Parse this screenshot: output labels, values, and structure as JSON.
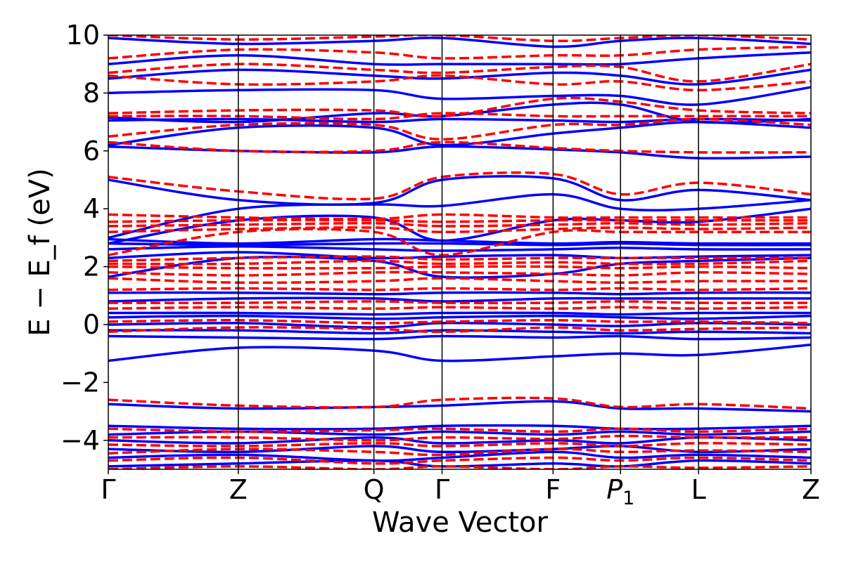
{
  "chart_data": {
    "type": "line",
    "xlabel": "Wave Vector",
    "ylabel": "E − E_f (eV)",
    "ylim": [
      -5,
      10
    ],
    "yticks": [
      -4,
      -2,
      0,
      2,
      4,
      6,
      8,
      10
    ],
    "ytick_labels": [
      "−4",
      "−2",
      "0",
      "2",
      "4",
      "6",
      "8",
      "10"
    ],
    "xlim": [
      0,
      1
    ],
    "kpoints": [
      {
        "label": "Γ",
        "x": 0.0
      },
      {
        "label": "Z",
        "x": 0.185
      },
      {
        "label": "Q",
        "x": 0.378
      },
      {
        "label": "Γ",
        "x": 0.475
      },
      {
        "label": "F",
        "x": 0.633
      },
      {
        "label": "P",
        "sub": "1",
        "x": 0.729
      },
      {
        "label": "L",
        "x": 0.84
      },
      {
        "label": "Z",
        "x": 1.0
      }
    ],
    "colors": {
      "series_a": "#0000ff",
      "series_b": "#ff0000"
    },
    "series": [
      {
        "color": "#0000ff",
        "dash": "solid",
        "bands": [
          [
            -4.9,
            -4.8,
            -4.7,
            -4.9,
            -4.8,
            -4.9,
            -4.7,
            -4.8
          ],
          [
            -4.6,
            -4.5,
            -4.7,
            -4.6,
            -4.4,
            -4.6,
            -4.5,
            -4.6
          ],
          [
            -4.3,
            -4.4,
            -4.2,
            -4.4,
            -4.3,
            -4.2,
            -4.4,
            -4.3
          ],
          [
            -4.0,
            -4.1,
            -3.9,
            -4.1,
            -4.0,
            -4.1,
            -3.9,
            -4.0
          ],
          [
            -3.8,
            -3.7,
            -3.8,
            -3.7,
            -3.8,
            -3.7,
            -3.8,
            -3.7
          ],
          [
            -3.5,
            -3.6,
            -3.6,
            -3.5,
            -3.5,
            -3.6,
            -3.6,
            -3.5
          ],
          [
            -2.75,
            -2.9,
            -2.85,
            -2.8,
            -2.65,
            -2.9,
            -2.9,
            -3.0
          ],
          [
            -1.25,
            -0.8,
            -0.9,
            -1.25,
            -1.1,
            -1.0,
            -1.05,
            -0.7
          ],
          [
            -0.4,
            -0.45,
            -0.5,
            -0.4,
            -0.45,
            -0.4,
            -0.5,
            -0.45
          ],
          [
            -0.2,
            -0.2,
            -0.3,
            -0.2,
            -0.25,
            -0.3,
            -0.25,
            -0.3
          ],
          [
            0.0,
            0.05,
            -0.1,
            0.05,
            0.0,
            -0.05,
            0.05,
            0.0
          ],
          [
            0.25,
            0.3,
            0.2,
            0.25,
            0.3,
            0.25,
            0.2,
            0.3
          ],
          [
            0.4,
            0.4,
            0.35,
            0.4,
            0.4,
            0.35,
            0.4,
            0.4
          ],
          [
            0.8,
            0.9,
            0.9,
            0.8,
            0.9,
            0.9,
            0.9,
            0.9
          ],
          [
            1.1,
            1.1,
            1.05,
            1.1,
            1.1,
            1.05,
            1.1,
            1.1
          ],
          [
            1.65,
            2.3,
            2.2,
            1.65,
            1.75,
            2.1,
            2.2,
            2.3
          ],
          [
            2.3,
            2.5,
            2.3,
            2.35,
            2.4,
            2.3,
            2.35,
            2.4
          ],
          [
            2.6,
            2.7,
            2.6,
            2.55,
            2.6,
            2.65,
            2.6,
            2.6
          ],
          [
            2.8,
            2.75,
            2.8,
            2.8,
            2.75,
            2.8,
            2.75,
            2.75
          ],
          [
            2.95,
            2.8,
            2.95,
            2.9,
            2.8,
            2.85,
            2.8,
            2.8
          ],
          [
            2.8,
            3.6,
            3.7,
            2.9,
            3.6,
            3.6,
            3.55,
            4.0
          ],
          [
            3.0,
            4.0,
            4.15,
            4.1,
            4.5,
            4.0,
            4.0,
            4.3
          ],
          [
            5.0,
            4.3,
            4.2,
            5.0,
            5.05,
            4.3,
            4.65,
            4.3
          ],
          [
            6.15,
            6.0,
            5.95,
            6.15,
            6.05,
            5.95,
            5.75,
            5.8
          ],
          [
            6.2,
            6.8,
            6.8,
            6.2,
            6.6,
            6.8,
            7.0,
            6.8
          ],
          [
            7.05,
            7.1,
            7.0,
            7.1,
            7.05,
            7.0,
            7.1,
            7.05
          ],
          [
            7.15,
            7.0,
            7.3,
            7.2,
            7.6,
            7.6,
            7.0,
            7.1
          ],
          [
            8.0,
            8.1,
            8.1,
            7.8,
            7.9,
            7.9,
            7.6,
            8.2
          ],
          [
            8.5,
            8.8,
            8.6,
            8.5,
            8.7,
            8.6,
            8.3,
            8.8
          ],
          [
            9.0,
            9.3,
            9.0,
            9.0,
            9.0,
            9.0,
            9.2,
            9.4
          ],
          [
            9.9,
            9.7,
            9.8,
            9.9,
            9.6,
            9.8,
            9.9,
            9.7
          ]
        ]
      },
      {
        "color": "#ff0000",
        "dash": "dashed",
        "bands": [
          [
            -5.0,
            -4.9,
            -5.0,
            -4.9,
            -5.0,
            -4.9,
            -4.95,
            -4.9
          ],
          [
            -4.7,
            -4.6,
            -4.8,
            -4.7,
            -4.6,
            -4.7,
            -4.6,
            -4.7
          ],
          [
            -4.45,
            -4.3,
            -4.4,
            -4.5,
            -4.3,
            -4.4,
            -4.35,
            -4.4
          ],
          [
            -4.15,
            -4.2,
            -4.1,
            -4.2,
            -4.1,
            -4.2,
            -4.1,
            -4.15
          ],
          [
            -3.9,
            -3.9,
            -4.0,
            -3.9,
            -3.95,
            -3.85,
            -3.9,
            -3.9
          ],
          [
            -3.6,
            -3.7,
            -3.65,
            -3.6,
            -3.7,
            -3.6,
            -3.7,
            -3.6
          ],
          [
            -2.6,
            -2.8,
            -2.85,
            -2.6,
            -2.55,
            -2.85,
            -2.75,
            -2.9
          ],
          [
            -0.25,
            -0.1,
            -0.15,
            -0.25,
            -0.1,
            -0.2,
            -0.15,
            -0.1
          ],
          [
            0.1,
            0.15,
            0.05,
            0.1,
            0.15,
            0.1,
            0.1,
            0.05
          ],
          [
            0.55,
            0.6,
            0.55,
            0.6,
            0.55,
            0.6,
            0.55,
            0.6
          ],
          [
            0.75,
            0.75,
            0.8,
            0.75,
            0.75,
            0.8,
            0.75,
            0.75
          ],
          [
            1.2,
            1.25,
            1.2,
            1.25,
            1.2,
            1.25,
            1.2,
            1.25
          ],
          [
            1.6,
            1.45,
            1.5,
            1.6,
            1.5,
            1.45,
            1.5,
            1.5
          ],
          [
            1.8,
            1.7,
            1.8,
            1.8,
            1.75,
            1.7,
            1.8,
            1.75
          ],
          [
            2.0,
            1.95,
            1.95,
            2.0,
            2.0,
            1.95,
            2.0,
            1.95
          ],
          [
            2.1,
            2.1,
            2.2,
            2.1,
            2.15,
            2.1,
            2.1,
            2.2
          ],
          [
            2.2,
            2.3,
            2.35,
            2.25,
            2.3,
            2.3,
            2.3,
            2.3
          ],
          [
            2.4,
            3.2,
            3.2,
            2.4,
            3.2,
            3.2,
            3.2,
            3.2
          ],
          [
            3.2,
            3.3,
            3.35,
            3.2,
            3.3,
            3.35,
            3.3,
            3.35
          ],
          [
            3.4,
            3.45,
            3.5,
            3.4,
            3.45,
            3.5,
            3.45,
            3.5
          ],
          [
            3.55,
            3.6,
            3.6,
            3.55,
            3.6,
            3.6,
            3.6,
            3.6
          ],
          [
            3.8,
            3.7,
            3.65,
            3.8,
            3.7,
            3.7,
            3.7,
            3.7
          ],
          [
            5.1,
            4.6,
            4.35,
            5.1,
            5.2,
            4.5,
            4.9,
            4.5
          ],
          [
            6.3,
            6.0,
            6.0,
            6.3,
            6.1,
            6.0,
            5.95,
            5.95
          ],
          [
            6.5,
            6.9,
            6.9,
            6.4,
            6.9,
            6.9,
            7.1,
            6.9
          ],
          [
            7.2,
            7.2,
            7.1,
            7.3,
            7.2,
            7.2,
            7.2,
            7.2
          ],
          [
            7.3,
            7.4,
            7.4,
            7.2,
            7.8,
            7.7,
            7.4,
            7.3
          ],
          [
            8.6,
            8.3,
            8.4,
            8.6,
            8.3,
            8.4,
            8.1,
            8.4
          ],
          [
            8.7,
            9.0,
            8.8,
            8.7,
            8.9,
            8.9,
            8.4,
            9.0
          ],
          [
            9.2,
            9.5,
            9.4,
            9.2,
            9.3,
            9.3,
            9.5,
            9.6
          ],
          [
            10.0,
            9.85,
            9.95,
            10.0,
            9.8,
            9.9,
            10.0,
            9.85
          ]
        ]
      }
    ]
  }
}
